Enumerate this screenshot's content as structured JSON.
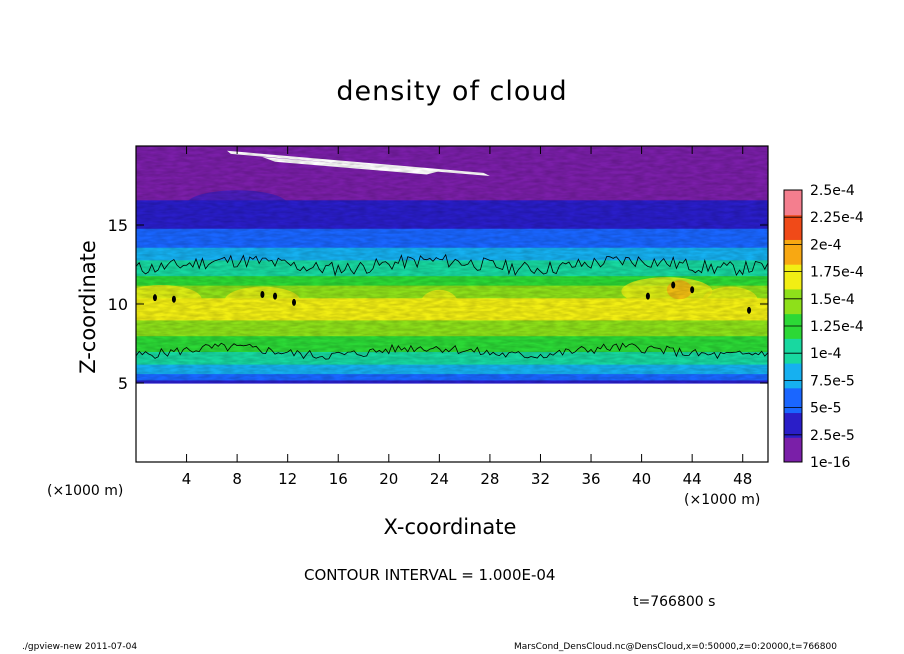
{
  "chart_data": {
    "type": "heatmap",
    "title": "density of cloud",
    "xlabel": "X-coordinate",
    "ylabel": "Z-coordinate",
    "x_unit_label": "(×1000 m)",
    "xlim": [
      0,
      50
    ],
    "ylim": [
      0,
      20
    ],
    "x_ticks": [
      "4",
      "8",
      "12",
      "16",
      "20",
      "24",
      "28",
      "32",
      "36",
      "40",
      "44",
      "48"
    ],
    "y_ticks": [
      "5",
      "10",
      "15"
    ],
    "x_tick_values": [
      4,
      8,
      12,
      16,
      20,
      24,
      28,
      32,
      36,
      40,
      44,
      48
    ],
    "y_tick_values": [
      5,
      10,
      15
    ],
    "colorbar": {
      "labels": [
        "1e-16",
        "2.5e-5",
        "5e-5",
        "7.5e-5",
        "1e-4",
        "1.25e-4",
        "1.5e-4",
        "1.75e-4",
        "2e-4",
        "2.25e-4",
        "2.5e-4"
      ],
      "levels": [
        1e-16,
        2.5e-05,
        5e-05,
        7.5e-05,
        0.0001,
        0.000125,
        0.00015,
        0.000175,
        0.0002,
        0.000225,
        0.00025
      ],
      "colors": [
        "#7a1fa8",
        "#2a1ec8",
        "#1a66ff",
        "#16b0f0",
        "#18d8a0",
        "#2cd836",
        "#8ee01a",
        "#f2ee14",
        "#f8a812",
        "#f04a18",
        "#f47e8e"
      ]
    },
    "cloud_layer": {
      "base_z": 5,
      "top_z": 19,
      "peak_z": 10,
      "peak_value": 0.000175,
      "contour_level_z_low": 7,
      "contour_level_z_high": 12.5
    },
    "contour_interval": "CONTOUR INTERVAL = 1.000E-04",
    "time": "t=766800 s"
  },
  "footer": {
    "left": "./gpview-new   2011-07-04",
    "right": "MarsCond_DensCloud.nc@DensCloud,x=0:50000,z=0:20000,t=766800"
  }
}
